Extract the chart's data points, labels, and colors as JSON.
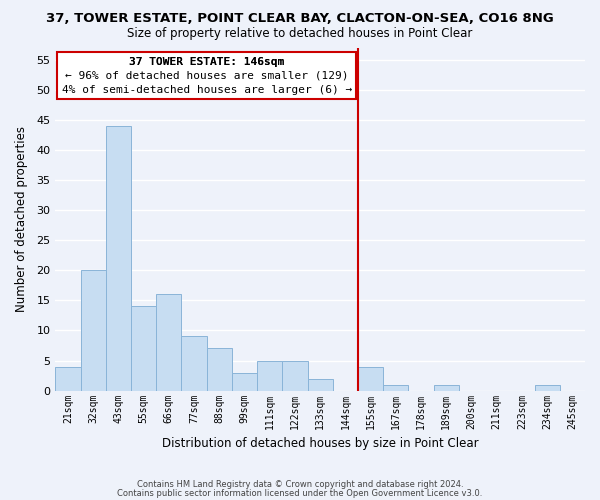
{
  "title": "37, TOWER ESTATE, POINT CLEAR BAY, CLACTON-ON-SEA, CO16 8NG",
  "subtitle": "Size of property relative to detached houses in Point Clear",
  "xlabel": "Distribution of detached houses by size in Point Clear",
  "ylabel": "Number of detached properties",
  "bin_labels": [
    "21sqm",
    "32sqm",
    "43sqm",
    "55sqm",
    "66sqm",
    "77sqm",
    "88sqm",
    "99sqm",
    "111sqm",
    "122sqm",
    "133sqm",
    "144sqm",
    "155sqm",
    "167sqm",
    "178sqm",
    "189sqm",
    "200sqm",
    "211sqm",
    "223sqm",
    "234sqm",
    "245sqm"
  ],
  "bar_heights": [
    4,
    20,
    44,
    14,
    16,
    9,
    7,
    3,
    5,
    5,
    2,
    0,
    4,
    1,
    0,
    1,
    0,
    0,
    0,
    1,
    0
  ],
  "bar_color": "#c7ddf2",
  "bar_edge_color": "#8ab4d8",
  "vline_x_index": 11.5,
  "vline_color": "#cc0000",
  "ylim": [
    0,
    57
  ],
  "yticks": [
    0,
    5,
    10,
    15,
    20,
    25,
    30,
    35,
    40,
    45,
    50,
    55
  ],
  "annotation_title": "37 TOWER ESTATE: 146sqm",
  "annotation_line1": "← 96% of detached houses are smaller (129)",
  "annotation_line2": "4% of semi-detached houses are larger (6) →",
  "footer_line1": "Contains HM Land Registry data © Crown copyright and database right 2024.",
  "footer_line2": "Contains public sector information licensed under the Open Government Licence v3.0.",
  "background_color": "#eef2fa",
  "grid_color": "white"
}
